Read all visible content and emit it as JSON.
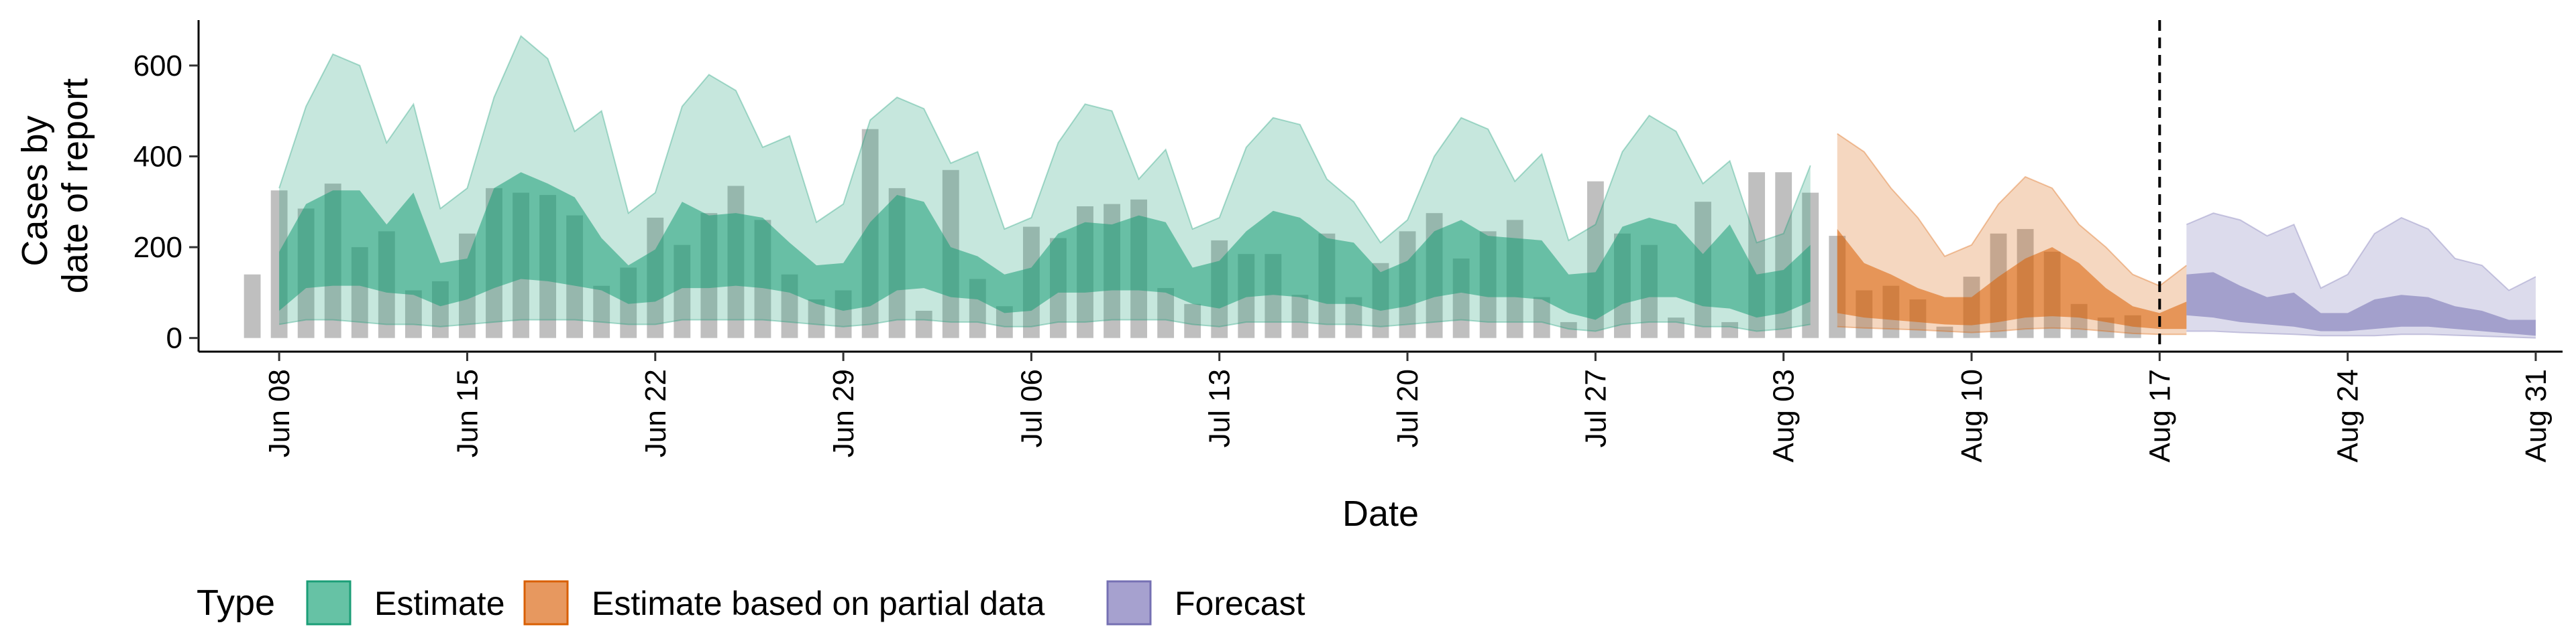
{
  "chart_data": {
    "type": "area",
    "xlabel": "Date",
    "ylabel": [
      "Cases by",
      "date of report"
    ],
    "ylim": [
      -30,
      700
    ],
    "yticks": [
      0,
      200,
      400,
      600
    ],
    "xlim": [
      "2021-06-05",
      "2021-09-01"
    ],
    "xticks": [
      {
        "date": "2021-06-08",
        "label": "Jun 08"
      },
      {
        "date": "2021-06-15",
        "label": "Jun 15"
      },
      {
        "date": "2021-06-22",
        "label": "Jun 22"
      },
      {
        "date": "2021-06-29",
        "label": "Jun 29"
      },
      {
        "date": "2021-07-06",
        "label": "Jul 06"
      },
      {
        "date": "2021-07-13",
        "label": "Jul 13"
      },
      {
        "date": "2021-07-20",
        "label": "Jul 20"
      },
      {
        "date": "2021-07-27",
        "label": "Jul 27"
      },
      {
        "date": "2021-08-03",
        "label": "Aug 03"
      },
      {
        "date": "2021-08-10",
        "label": "Aug 10"
      },
      {
        "date": "2021-08-17",
        "label": "Aug 17"
      },
      {
        "date": "2021-08-24",
        "label": "Aug 24"
      },
      {
        "date": "2021-08-31",
        "label": "Aug 31"
      }
    ],
    "vline": "2021-08-17",
    "legend": {
      "title": "Type",
      "position": "bottom",
      "items": [
        {
          "label": "Estimate",
          "fill": "#66c2a5",
          "stroke": "#1b9e77"
        },
        {
          "label": "Estimate based on partial data",
          "fill": "#e7985f",
          "stroke": "#d95f02"
        },
        {
          "label": "Forecast",
          "fill": "#a6a1cf",
          "stroke": "#7570b3"
        }
      ]
    },
    "reported_cases": {
      "start": "2021-06-07",
      "color": "#a9a9a9",
      "values": [
        140,
        325,
        285,
        340,
        200,
        235,
        105,
        125,
        230,
        330,
        320,
        315,
        270,
        115,
        155,
        265,
        205,
        275,
        335,
        260,
        140,
        85,
        105,
        460,
        330,
        60,
        370,
        130,
        70,
        245,
        220,
        290,
        295,
        305,
        110,
        75,
        215,
        185,
        185,
        95,
        230,
        90,
        165,
        235,
        275,
        175,
        235,
        260,
        90,
        35,
        345,
        230,
        205,
        45,
        300,
        35,
        365,
        365,
        320,
        225,
        105,
        115,
        85,
        25,
        135,
        230,
        240,
        190,
        75,
        45,
        50
      ]
    },
    "series": [
      {
        "name": "Estimate",
        "start": "2021-06-08",
        "color": "#1b9e77",
        "outer_low": [
          30,
          40,
          40,
          35,
          30,
          30,
          25,
          30,
          35,
          40,
          40,
          40,
          35,
          30,
          30,
          40,
          40,
          40,
          40,
          35,
          30,
          25,
          30,
          40,
          40,
          35,
          35,
          25,
          25,
          35,
          35,
          40,
          40,
          40,
          30,
          25,
          35,
          35,
          35,
          30,
          30,
          25,
          30,
          35,
          40,
          35,
          35,
          35,
          20,
          15,
          30,
          35,
          35,
          25,
          25,
          15,
          20,
          30
        ],
        "inner_low": [
          60,
          110,
          115,
          115,
          100,
          95,
          70,
          85,
          110,
          130,
          125,
          115,
          105,
          75,
          80,
          110,
          110,
          115,
          110,
          100,
          75,
          60,
          70,
          105,
          110,
          90,
          85,
          55,
          60,
          100,
          100,
          105,
          105,
          100,
          75,
          65,
          90,
          95,
          90,
          75,
          75,
          60,
          70,
          90,
          100,
          90,
          90,
          85,
          55,
          40,
          75,
          90,
          90,
          70,
          65,
          45,
          55,
          80
        ],
        "inner_high": [
          190,
          295,
          325,
          325,
          250,
          320,
          165,
          175,
          330,
          365,
          340,
          310,
          220,
          160,
          195,
          300,
          270,
          275,
          265,
          210,
          160,
          165,
          255,
          315,
          300,
          200,
          180,
          140,
          155,
          230,
          255,
          250,
          270,
          255,
          155,
          170,
          235,
          280,
          265,
          220,
          210,
          145,
          170,
          235,
          260,
          225,
          220,
          215,
          140,
          145,
          245,
          265,
          250,
          185,
          250,
          140,
          150,
          205
        ],
        "outer_high": [
          330,
          510,
          625,
          600,
          430,
          515,
          285,
          330,
          530,
          665,
          615,
          455,
          500,
          275,
          320,
          510,
          580,
          545,
          420,
          445,
          255,
          295,
          480,
          530,
          505,
          385,
          410,
          240,
          265,
          430,
          515,
          500,
          350,
          415,
          240,
          265,
          420,
          485,
          470,
          350,
          300,
          210,
          260,
          400,
          485,
          460,
          345,
          405,
          215,
          250,
          410,
          490,
          455,
          340,
          390,
          210,
          230,
          380
        ]
      },
      {
        "name": "Estimate based on partial data",
        "start": "2021-08-05",
        "color": "#d95f02",
        "outer_low": [
          25,
          22,
          20,
          18,
          15,
          12,
          15,
          20,
          22,
          20,
          15,
          10,
          8,
          8
        ],
        "inner_low": [
          55,
          45,
          40,
          35,
          30,
          28,
          35,
          45,
          48,
          45,
          35,
          25,
          20,
          20
        ],
        "inner_high": [
          240,
          165,
          140,
          110,
          90,
          90,
          135,
          175,
          200,
          165,
          110,
          70,
          55,
          80
        ],
        "outer_high": [
          450,
          410,
          330,
          265,
          180,
          205,
          295,
          355,
          330,
          250,
          200,
          140,
          115,
          160
        ]
      },
      {
        "name": "Forecast",
        "start": "2021-08-18",
        "color": "#7570b3",
        "outer_low": [
          15,
          15,
          12,
          10,
          8,
          5,
          5,
          5,
          8,
          8,
          6,
          4,
          2,
          0
        ],
        "inner_low": [
          50,
          45,
          35,
          30,
          25,
          15,
          15,
          20,
          25,
          25,
          20,
          15,
          10,
          5
        ],
        "inner_high": [
          140,
          145,
          115,
          90,
          100,
          55,
          55,
          85,
          95,
          90,
          70,
          60,
          40,
          40
        ],
        "outer_high": [
          250,
          275,
          260,
          225,
          250,
          110,
          140,
          230,
          265,
          240,
          175,
          160,
          105,
          135
        ]
      }
    ]
  }
}
